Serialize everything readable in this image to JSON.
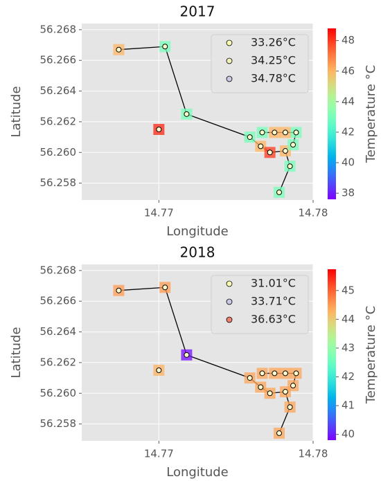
{
  "chart_data": [
    {
      "type": "scatter",
      "title": "2017",
      "xlabel": "Longitude",
      "ylabel": "Latitude",
      "colorbar_label": "Temperature °C",
      "x": [
        14.77,
        null,
        14.7674,
        14.7704,
        14.7718,
        14.7759,
        14.7766,
        14.7772,
        14.7782,
        14.7785,
        14.7778,
        null,
        14.7767,
        14.7775,
        14.7782,
        14.7789,
        14.7787
      ],
      "y": [
        56.2615,
        null,
        56.2667,
        56.2669,
        56.2625,
        56.261,
        56.2604,
        56.26,
        56.2601,
        56.2591,
        56.2574,
        null,
        56.2613,
        56.2613,
        56.2613,
        56.2613,
        56.2605
      ],
      "temperature": [
        48.3,
        null,
        46,
        43,
        43,
        43,
        46,
        48,
        46,
        43,
        43,
        null,
        43,
        46,
        46,
        43,
        43
      ],
      "point_color": "#ffffcc",
      "line_color": "#000000",
      "legend": [
        {
          "name": "33.26°C",
          "color": "#ffffb3"
        },
        {
          "name": "34.25°C",
          "color": "#f3f3b8"
        },
        {
          "name": "34.78°C",
          "color": "#c9c9e3"
        }
      ],
      "xlim": [
        14.765,
        14.78
      ],
      "ylim": [
        56.2569,
        56.2684
      ],
      "xticks": [
        14.77,
        14.78
      ],
      "yticks": [
        56.258,
        56.26,
        56.262,
        56.264,
        56.266,
        56.268
      ],
      "ytick_labels": [
        "56.258",
        "56.260",
        "56.262",
        "56.264",
        "56.266",
        "56.268"
      ],
      "clim": [
        37.6,
        48.8
      ],
      "cticks": [
        38,
        40,
        42,
        44,
        46,
        48
      ],
      "grid": true
    },
    {
      "type": "scatter",
      "title": "2018",
      "xlabel": "Longitude",
      "ylabel": "Latitude",
      "colorbar_label": "Temperature °C",
      "x": [
        14.77,
        null,
        14.7674,
        14.7704,
        14.7718,
        14.7759,
        14.7766,
        14.7772,
        14.7782,
        14.7785,
        14.7778,
        null,
        14.7767,
        14.7775,
        14.7782,
        14.7789,
        14.7787
      ],
      "y": [
        56.2615,
        null,
        56.2667,
        56.2669,
        56.2625,
        56.261,
        56.2604,
        56.26,
        56.2601,
        56.2591,
        56.2574,
        null,
        56.2613,
        56.2613,
        56.2613,
        56.2613,
        56.2605
      ],
      "temperature": [
        44.3,
        null,
        44.5,
        44.5,
        39.9,
        44.4,
        44.4,
        44.4,
        44.4,
        44.4,
        44.4,
        null,
        44.4,
        44.4,
        44.4,
        44.4,
        44.4
      ],
      "point_color": "#ffffcc",
      "line_color": "#000000",
      "legend": [
        {
          "name": "31.01°C",
          "color": "#ffffb3"
        },
        {
          "name": "33.71°C",
          "color": "#c9c9e3"
        },
        {
          "name": "36.63°C",
          "color": "#f08070"
        }
      ],
      "xlim": [
        14.765,
        14.78
      ],
      "ylim": [
        56.2569,
        56.2684
      ],
      "xticks": [
        14.77,
        14.78
      ],
      "yticks": [
        56.258,
        56.26,
        56.262,
        56.264,
        56.266,
        56.268
      ],
      "ytick_labels": [
        "56.258",
        "56.260",
        "56.262",
        "56.264",
        "56.266",
        "56.268"
      ],
      "clim": [
        39.8,
        45.74
      ],
      "cticks": [
        40,
        41,
        42,
        43,
        44,
        45
      ],
      "grid": true
    }
  ]
}
